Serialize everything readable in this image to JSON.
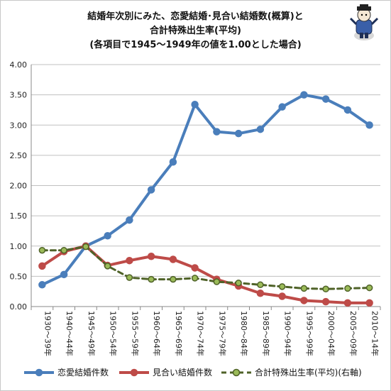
{
  "title": {
    "line1": "結婚年次別にみた、恋愛結婚･見合い結婚数(概算)と",
    "line2": "合計特殊出生率(平均)",
    "line3": "(各項目で1945～1949年の値を1.00とした場合)"
  },
  "chart_data": {
    "type": "line",
    "categories": [
      "1930～39年",
      "1940～44年",
      "1945～49年",
      "1950～54年",
      "1955～59年",
      "1960～64年",
      "1965～69年",
      "1970～74年",
      "1975～79年",
      "1980～84年",
      "1985～89年",
      "1990～94年",
      "1995～99年",
      "2000～04年",
      "2005～09年",
      "2010～14年"
    ],
    "ylim": [
      0,
      4.0
    ],
    "yticks": [
      "0.00",
      "0.50",
      "1.00",
      "1.50",
      "2.00",
      "2.50",
      "3.00",
      "3.50",
      "4.00"
    ],
    "grid": true,
    "legend_position": "bottom",
    "series": [
      {
        "name": "恋愛結婚件数",
        "color": "#4a7ebb",
        "style": "solid",
        "marker": "circle",
        "values": [
          0.36,
          0.53,
          1.0,
          1.17,
          1.43,
          1.93,
          2.39,
          3.34,
          2.89,
          2.86,
          2.93,
          3.3,
          3.5,
          3.43,
          3.25,
          3.0
        ]
      },
      {
        "name": "見合い結婚件数",
        "color": "#be4b48",
        "style": "solid",
        "marker": "circle",
        "values": [
          0.67,
          0.91,
          1.0,
          0.68,
          0.76,
          0.83,
          0.78,
          0.64,
          0.45,
          0.34,
          0.22,
          0.17,
          0.1,
          0.08,
          0.06,
          0.06
        ]
      },
      {
        "name": "合計特殊出生率(平均)(右軸)",
        "color": "#4f6228",
        "markerFill": "#9bbb59",
        "style": "dashed",
        "marker": "circle",
        "values": [
          0.93,
          0.93,
          0.99,
          0.67,
          0.48,
          0.45,
          0.45,
          0.47,
          0.41,
          0.39,
          0.36,
          0.33,
          0.3,
          0.29,
          0.3,
          0.31
        ]
      }
    ]
  }
}
